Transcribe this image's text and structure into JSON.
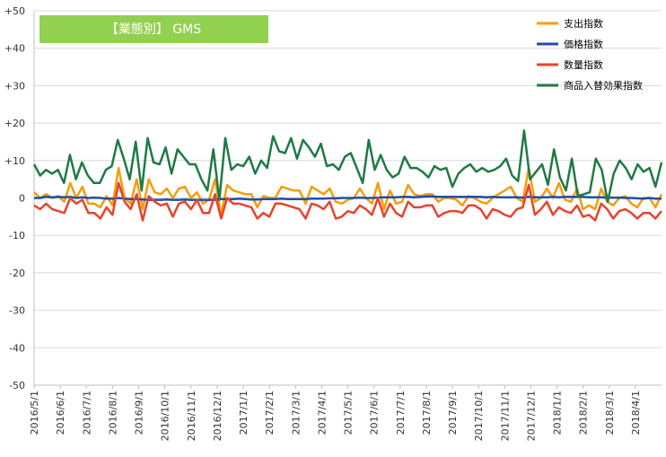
{
  "chart_data": {
    "type": "line",
    "title": "【業態別】 GMS",
    "title_box_color": "#92d050",
    "xlabel": "",
    "ylabel": "",
    "ylim": [
      -50,
      50
    ],
    "y_ticks": [
      "+50",
      "+40",
      "+30",
      "+20",
      "+10",
      "0",
      "-10",
      "-20",
      "-30",
      "-40",
      "-50"
    ],
    "y_tick_values": [
      50,
      40,
      30,
      20,
      10,
      0,
      -10,
      -20,
      -30,
      -40,
      -50
    ],
    "x_tick_labels": [
      "2016/5/1",
      "2016/6/1",
      "2016/7/1",
      "2016/8/1",
      "2016/9/1",
      "2016/10/1",
      "2016/11/1",
      "2016/12/1",
      "2017/1/1",
      "2017/2/1",
      "2017/3/1",
      "2017/4/1",
      "2017/5/1",
      "2017/6/1",
      "2017/7/1",
      "2017/8/1",
      "2017/9/1",
      "2017/10/1",
      "2017/11/1",
      "2017/12/1",
      "2018/1/1",
      "2018/2/1",
      "2018/3/1",
      "2018/4/1"
    ],
    "grid": true,
    "legend_position": "top-right",
    "series": [
      {
        "name": "支出指数",
        "color": "#f59d0a",
        "values": [
          1.5,
          0,
          1,
          0,
          0.5,
          -1,
          4,
          0,
          3,
          -1.5,
          -1.5,
          -2.5,
          0.5,
          -2,
          8,
          0,
          -1.5,
          5,
          -3,
          5,
          1.5,
          1,
          2.5,
          0,
          2.5,
          3,
          0,
          1.5,
          -1.5,
          -0.5,
          5,
          -4.5,
          3.5,
          2,
          1.5,
          1,
          1,
          -2.5,
          0.5,
          0,
          0,
          3,
          2.5,
          2,
          2,
          -1.5,
          3,
          2,
          1,
          2.5,
          -1,
          -1.5,
          -0.5,
          0,
          2.5,
          0,
          -1.5,
          4,
          -3,
          2,
          -1.5,
          -1,
          3.5,
          1,
          0.5,
          1,
          1,
          -1,
          0,
          0,
          -0.5,
          -2,
          0.5,
          0,
          -1,
          -1.5,
          0,
          1,
          2,
          3,
          0,
          -1,
          8,
          -1,
          0,
          2.5,
          0,
          4,
          -0.5,
          -1,
          2.5,
          -3,
          -2,
          -3,
          2.5,
          -1,
          -2,
          0,
          0.5,
          -1.5,
          -2.5,
          0,
          0,
          -2.5,
          1
        ]
      },
      {
        "name": "価格指数",
        "color": "#1f4fa8",
        "values": [
          0,
          0,
          0.3,
          0.2,
          0.3,
          0.2,
          0.3,
          0,
          0.2,
          0,
          0.1,
          0,
          -0.2,
          -0.2,
          0,
          -0.2,
          -0.3,
          -0.3,
          -0.4,
          -0.5,
          -0.5,
          -0.5,
          -0.4,
          -0.5,
          -0.5,
          -0.4,
          -0.5,
          -0.5,
          -0.5,
          -0.5,
          -0.5,
          -0.3,
          -0.3,
          -0.3,
          -0.2,
          -0.3,
          -0.4,
          -0.4,
          -0.3,
          -0.3,
          -0.3,
          -0.2,
          -0.3,
          -0.3,
          -0.3,
          -0.3,
          -0.2,
          -0.2,
          -0.2,
          -0.1,
          -0.1,
          0,
          0,
          0,
          0.1,
          0,
          0,
          0.1,
          0.2,
          0.2,
          0.2,
          0.3,
          0.3,
          0.2,
          0.3,
          0.4,
          0.4,
          0.3,
          0.3,
          0.3,
          0.3,
          0.3,
          0.3,
          0.3,
          0.3,
          0.2,
          0.3,
          0.2,
          0.2,
          0.2,
          0.2,
          0.1,
          0.3,
          0.2,
          0.2,
          0.2,
          0.3,
          0.2,
          0.3,
          0.3,
          0.3,
          0.3,
          0.2,
          0.2,
          0.2,
          0.1,
          0.1,
          0.1,
          0,
          0,
          -0.1,
          -0.2,
          0,
          -0.2,
          -0.2
        ]
      },
      {
        "name": "数量指数",
        "color": "#e8432d",
        "values": [
          -2,
          -3,
          -1.5,
          -3,
          -3.5,
          -4,
          0,
          -1.5,
          -0.5,
          -4,
          -4,
          -5.5,
          -2.5,
          -4.5,
          4,
          -1,
          -3,
          1,
          -6,
          0.5,
          -1,
          -2,
          -1.5,
          -5,
          -1.5,
          -1,
          -3,
          -0.5,
          -4,
          -4,
          1,
          -5.5,
          0,
          -1.5,
          -1.5,
          -2,
          -2.5,
          -5.5,
          -4,
          -5,
          -1.5,
          -1.5,
          -2,
          -2.5,
          -3,
          -5.5,
          -1.5,
          -2,
          -3,
          -1,
          -5.5,
          -5,
          -3.5,
          -4,
          -2,
          -3,
          -4.5,
          0,
          -5,
          -1.5,
          -4,
          -5,
          -1,
          -2.5,
          -2.5,
          -2,
          -2,
          -5,
          -4,
          -3.5,
          -3.5,
          -4,
          -2,
          -2,
          -3,
          -5.5,
          -3,
          -3.5,
          -4.5,
          -5,
          -3,
          -2.5,
          3.5,
          -4.5,
          -3,
          -1,
          -4.5,
          -2.5,
          -3.5,
          -4,
          -2,
          -5,
          -4.5,
          -6,
          -1.5,
          -3,
          -5.5,
          -3.5,
          -3,
          -4,
          -5.5,
          -4,
          -4,
          -5.5,
          -3.5
        ]
      },
      {
        "name": "商品入替効果指数",
        "color": "#1f7a45",
        "values": [
          9,
          6,
          7.5,
          6.5,
          7.5,
          4,
          11.5,
          5,
          9.5,
          6,
          4,
          4,
          7.5,
          8.5,
          15.5,
          10.5,
          5,
          15,
          2,
          16,
          9.5,
          9,
          13.5,
          6.5,
          13,
          11,
          9,
          9,
          5,
          2,
          13,
          -0.5,
          16,
          7.5,
          9,
          8.5,
          11,
          6.5,
          10,
          8,
          16.5,
          12.5,
          12,
          16,
          10.5,
          15.5,
          13.5,
          11,
          14.5,
          8.5,
          9,
          7.5,
          11,
          12,
          8,
          4,
          15.5,
          7.5,
          11.5,
          7.5,
          5.5,
          6.5,
          11,
          8,
          8,
          7,
          5.5,
          8.5,
          7.5,
          8,
          3,
          6.5,
          8,
          9,
          7,
          8,
          7,
          7.5,
          8.5,
          10.5,
          6,
          4.5,
          18,
          5,
          7,
          9,
          3.5,
          13,
          5.5,
          2,
          10.5,
          0.5,
          1,
          1.5,
          10.5,
          7.5,
          -1,
          6.5,
          10,
          8,
          5,
          9,
          7,
          8,
          3,
          9.5
        ]
      }
    ]
  }
}
